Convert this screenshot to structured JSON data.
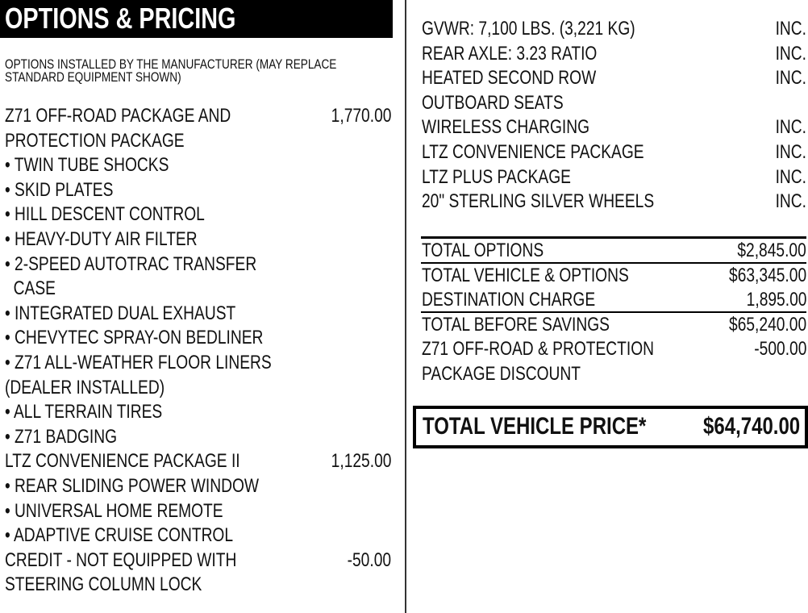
{
  "header": {
    "title": "OPTIONS & PRICING"
  },
  "subtitle": [
    "OPTIONS INSTALLED BY THE MANUFACTURER (MAY REPLACE",
    "STANDARD EQUIPMENT SHOWN)"
  ],
  "left_rows": [
    {
      "label": "Z71 OFF-ROAD PACKAGE AND",
      "price": "1,770.00"
    },
    {
      "label": "PROTECTION PACKAGE",
      "price": ""
    },
    {
      "label": "• TWIN TUBE SHOCKS",
      "price": ""
    },
    {
      "label": "• SKID PLATES",
      "price": ""
    },
    {
      "label": "• HILL DESCENT CONTROL",
      "price": ""
    },
    {
      "label": "• HEAVY-DUTY AIR FILTER",
      "price": ""
    },
    {
      "label": "• 2-SPEED AUTOTRAC TRANSFER",
      "price": ""
    },
    {
      "label": "  CASE",
      "price": ""
    },
    {
      "label": "• INTEGRATED DUAL EXHAUST",
      "price": ""
    },
    {
      "label": "• CHEVYTEC SPRAY-ON BEDLINER",
      "price": ""
    },
    {
      "label": "• Z71 ALL-WEATHER FLOOR LINERS",
      "price": ""
    },
    {
      "label": "(DEALER INSTALLED)",
      "price": ""
    },
    {
      "label": "• ALL TERRAIN TIRES",
      "price": ""
    },
    {
      "label": "• Z71 BADGING",
      "price": ""
    },
    {
      "label": "LTZ CONVENIENCE PACKAGE II",
      "price": "1,125.00"
    },
    {
      "label": "• REAR SLIDING POWER WINDOW",
      "price": ""
    },
    {
      "label": "• UNIVERSAL HOME REMOTE",
      "price": ""
    },
    {
      "label": "• ADAPTIVE CRUISE CONTROL",
      "price": ""
    },
    {
      "label": "CREDIT - NOT EQUIPPED WITH",
      "price": "-50.00"
    },
    {
      "label": "STEERING COLUMN LOCK",
      "price": ""
    }
  ],
  "right_rows": [
    {
      "label": "GVWR: 7,100 LBS. (3,221 KG)",
      "price": "INC."
    },
    {
      "label": "REAR AXLE: 3.23 RATIO",
      "price": "INC."
    },
    {
      "label": "HEATED SECOND ROW",
      "price": "INC."
    },
    {
      "label": "OUTBOARD SEATS",
      "price": ""
    },
    {
      "label": "WIRELESS CHARGING",
      "price": "INC."
    },
    {
      "label": "LTZ CONVENIENCE PACKAGE",
      "price": "INC."
    },
    {
      "label": "LTZ PLUS PACKAGE",
      "price": "INC."
    },
    {
      "label": "20\" STERLING SILVER WHEELS",
      "price": "INC."
    }
  ],
  "totals": [
    {
      "label": "TOTAL OPTIONS",
      "price": "$2,845.00"
    },
    {
      "label": "TOTAL VEHICLE & OPTIONS",
      "price": "$63,345.00"
    },
    {
      "label": "DESTINATION CHARGE",
      "price": "1,895.00"
    },
    {
      "label": "TOTAL BEFORE SAVINGS",
      "price": "$65,240.00"
    },
    {
      "label": "Z71 OFF-ROAD & PROTECTION",
      "price": "-500.00"
    },
    {
      "label": "PACKAGE DISCOUNT",
      "price": ""
    }
  ],
  "total_price": {
    "label": "TOTAL VEHICLE PRICE*",
    "value": "$64,740.00"
  }
}
